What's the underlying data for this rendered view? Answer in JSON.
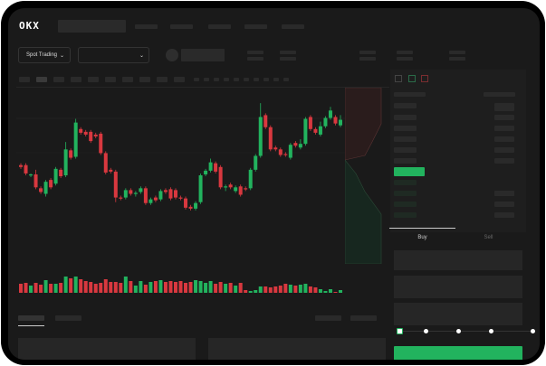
{
  "header": {
    "logo": "OKX"
  },
  "toolbar": {
    "market_select": "Spot Trading"
  },
  "order_form": {
    "tabs": [
      {
        "label": "Buy",
        "active": true
      },
      {
        "label": "Sell",
        "active": false
      }
    ],
    "slider_percent": 0
  },
  "colors": {
    "up": "#22b35e",
    "down": "#d9383f",
    "background": "#1a1a1a"
  },
  "icons": [
    "chevron-down-icon",
    "order-book-both-icon",
    "order-book-buy-icon",
    "order-book-sell-icon"
  ],
  "chart_data": {
    "type": "candlestick",
    "candles": [
      [
        68,
        70,
        64,
        66
      ],
      [
        68,
        70,
        57,
        59
      ],
      [
        57,
        59,
        55,
        58
      ],
      [
        58,
        63,
        42,
        44
      ],
      [
        43,
        45,
        37,
        39
      ],
      [
        37,
        52,
        34,
        50
      ],
      [
        52,
        54,
        42,
        44
      ],
      [
        48,
        66,
        46,
        64
      ],
      [
        63,
        65,
        54,
        56
      ],
      [
        57,
        93,
        55,
        85
      ],
      [
        84,
        86,
        74,
        76
      ],
      [
        77,
        118,
        75,
        114
      ],
      [
        107,
        109,
        101,
        103
      ],
      [
        104,
        106,
        99,
        101
      ],
      [
        104,
        106,
        92,
        94
      ],
      [
        101,
        103,
        97,
        99
      ],
      [
        102,
        104,
        79,
        81
      ],
      [
        81,
        83,
        58,
        60
      ],
      [
        63,
        65,
        59,
        61
      ],
      [
        61,
        63,
        28,
        33
      ],
      [
        33,
        35,
        30,
        32
      ],
      [
        33,
        43,
        31,
        41
      ],
      [
        41,
        43,
        35,
        37
      ],
      [
        37,
        40,
        34,
        38
      ],
      [
        39,
        45,
        37,
        43
      ],
      [
        43,
        45,
        25,
        27
      ],
      [
        27,
        33,
        25,
        31
      ],
      [
        33,
        35,
        28,
        30
      ],
      [
        31,
        42,
        29,
        40
      ],
      [
        41,
        43,
        37,
        39
      ],
      [
        42,
        44,
        30,
        32
      ],
      [
        41,
        43,
        31,
        33
      ],
      [
        33,
        35,
        30,
        32
      ],
      [
        32,
        34,
        20,
        22
      ],
      [
        23,
        25,
        19,
        21
      ],
      [
        21,
        29,
        19,
        27
      ],
      [
        28,
        59,
        26,
        57
      ],
      [
        58,
        64,
        56,
        62
      ],
      [
        62,
        75,
        60,
        71
      ],
      [
        70,
        72,
        59,
        61
      ],
      [
        66,
        68,
        42,
        44
      ],
      [
        44,
        47,
        40,
        45
      ],
      [
        47,
        49,
        42,
        44
      ],
      [
        40,
        46,
        38,
        44
      ],
      [
        45,
        47,
        34,
        36
      ],
      [
        43,
        45,
        40,
        42
      ],
      [
        43,
        65,
        41,
        63
      ],
      [
        63,
        80,
        61,
        78
      ],
      [
        78,
        135,
        76,
        120
      ],
      [
        122,
        124,
        107,
        109
      ],
      [
        109,
        111,
        83,
        85
      ],
      [
        87,
        89,
        83,
        85
      ],
      [
        85,
        87,
        77,
        79
      ],
      [
        80,
        82,
        77,
        79
      ],
      [
        76,
        92,
        74,
        90
      ],
      [
        92,
        94,
        87,
        89
      ],
      [
        87,
        96,
        85,
        91
      ],
      [
        91,
        120,
        89,
        118
      ],
      [
        120,
        122,
        105,
        107
      ],
      [
        107,
        109,
        101,
        103
      ],
      [
        101,
        115,
        99,
        110
      ],
      [
        110,
        121,
        108,
        119
      ],
      [
        119,
        131,
        117,
        127
      ],
      [
        120,
        122,
        111,
        113
      ],
      [
        111,
        122,
        109,
        117
      ]
    ],
    "volume": [
      10,
      11,
      8,
      11,
      9,
      14,
      10,
      10,
      11,
      18,
      16,
      18,
      15,
      13,
      12,
      10,
      11,
      15,
      12,
      12,
      11,
      18,
      13,
      8,
      13,
      9,
      12,
      13,
      14,
      12,
      13,
      12,
      13,
      11,
      12,
      14,
      13,
      11,
      13,
      10,
      12,
      10,
      11,
      8,
      11,
      3,
      2,
      3,
      7,
      7,
      6,
      7,
      8,
      10,
      9,
      8,
      9,
      10,
      7,
      6,
      4,
      2,
      4,
      1,
      3
    ],
    "ylim": [
      15,
      140
    ]
  }
}
